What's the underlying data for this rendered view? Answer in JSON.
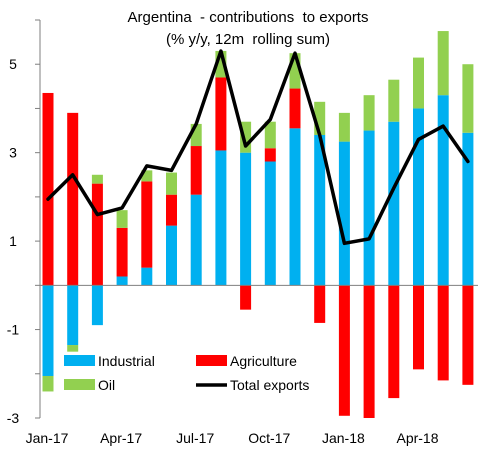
{
  "chart_data": {
    "type": "bar",
    "title": "Argentina  - contributions  to exports",
    "subtitle": "(% y/y, 12m  rolling sum)",
    "xlabel": "",
    "ylabel": "",
    "ylim": [
      -3,
      6
    ],
    "y_ticks": [
      -3,
      -1,
      1,
      3,
      5
    ],
    "x_tick_labels": [
      {
        "label": "Jan-17",
        "index": 0
      },
      {
        "label": "Apr-17",
        "index": 3
      },
      {
        "label": "Jul-17",
        "index": 6
      },
      {
        "label": "Oct-17",
        "index": 9
      },
      {
        "label": "Jan-18",
        "index": 12
      },
      {
        "label": "Apr-18",
        "index": 15
      }
    ],
    "categories": [
      "Jan-17",
      "Feb-17",
      "Mar-17",
      "Apr-17",
      "May-17",
      "Jun-17",
      "Jul-17",
      "Aug-17",
      "Sep-17",
      "Oct-17",
      "Nov-17",
      "Dec-17",
      "Jan-18",
      "Feb-18",
      "Mar-18",
      "Apr-18",
      "May-18",
      "Jun-18"
    ],
    "stacked": true,
    "grid": false,
    "legend_position": "bottom-left",
    "series": [
      {
        "name": "Industrial",
        "color": "#00B0F0",
        "values": [
          -2.05,
          -1.35,
          -0.9,
          0.2,
          0.4,
          1.35,
          2.05,
          3.05,
          3.0,
          2.8,
          3.55,
          3.4,
          3.25,
          3.5,
          3.7,
          4.0,
          4.3,
          3.45
        ]
      },
      {
        "name": "Agriculture",
        "color": "#FF0000",
        "values": [
          4.35,
          3.9,
          2.3,
          1.1,
          1.95,
          0.7,
          1.1,
          1.65,
          -0.55,
          0.3,
          0.9,
          -0.85,
          -2.95,
          -3.0,
          -2.55,
          -1.9,
          -2.15,
          -2.25
        ]
      },
      {
        "name": "Oil",
        "color": "#92D050",
        "values": [
          -0.35,
          -0.15,
          0.2,
          0.4,
          0.25,
          0.5,
          0.5,
          0.6,
          0.7,
          0.6,
          0.8,
          0.75,
          0.65,
          0.8,
          0.95,
          1.15,
          1.45,
          1.55
        ]
      },
      {
        "name": "Total exports",
        "color": "#000000",
        "kind": "line",
        "values": [
          1.95,
          2.5,
          1.6,
          1.75,
          2.7,
          2.6,
          3.65,
          5.3,
          3.15,
          3.75,
          5.25,
          3.4,
          0.95,
          1.05,
          2.2,
          3.3,
          3.6,
          2.8
        ]
      }
    ]
  }
}
